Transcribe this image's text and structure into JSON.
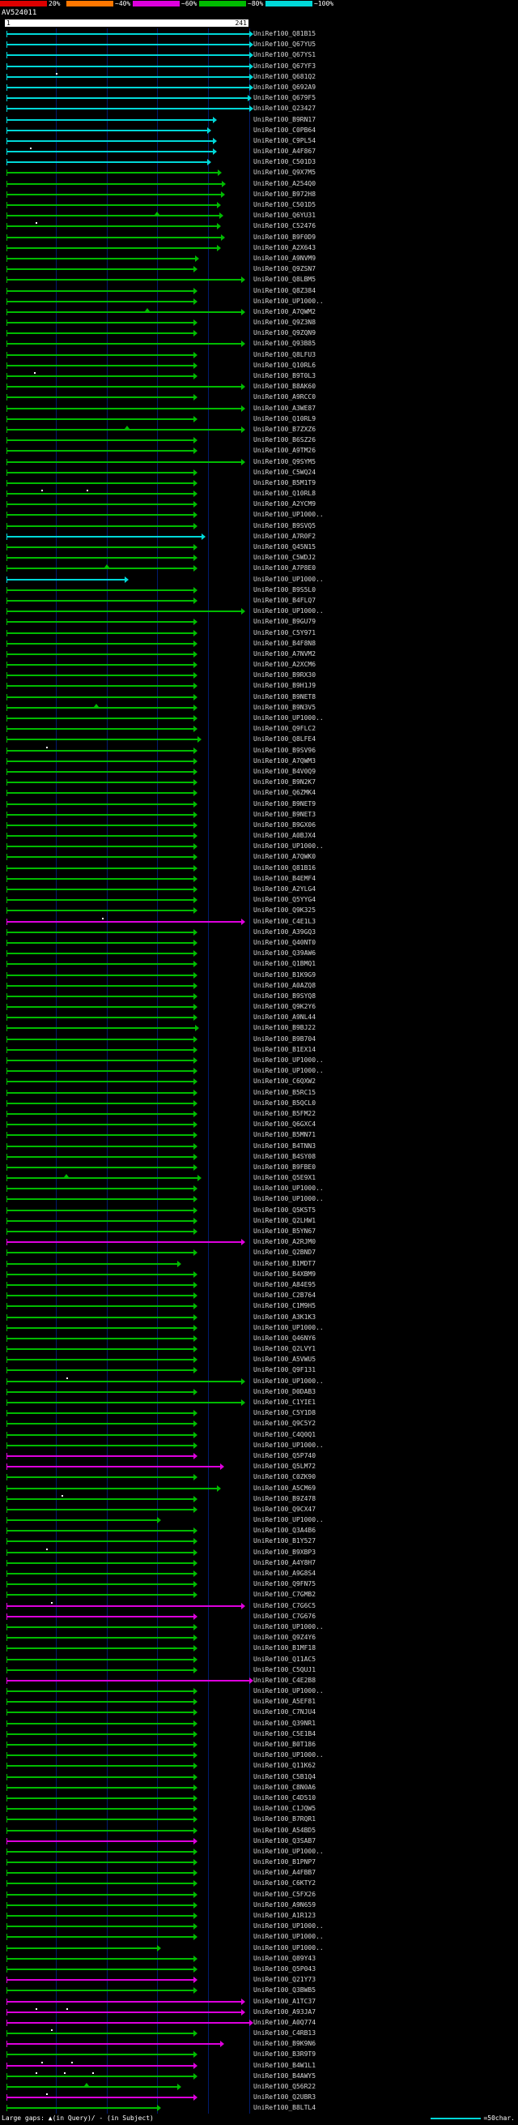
{
  "title": "AV524011",
  "scale": {
    "segments": [
      {
        "name": "red",
        "color": "#dd0000",
        "label": "20%"
      },
      {
        "name": "orange",
        "color": "#ff7700",
        "label": "~40%"
      },
      {
        "name": "magenta",
        "color": "#dd00dd",
        "label": "~60%"
      },
      {
        "name": "green",
        "color": "#00bb00",
        "label": "~80%"
      },
      {
        "name": "cyan",
        "color": "#00d8d8",
        "label": "~100%"
      }
    ]
  },
  "ruler": {
    "start": "1",
    "end": "241"
  },
  "footer": {
    "gaps_label": "Large gaps: ▲(in Query)/ - (in Subject)",
    "scale_mark_label": "=50char."
  },
  "chart_data": {
    "type": "alignment-overview",
    "query": "AV524011",
    "axis": {
      "min": 1,
      "max": 241,
      "gridlines": [
        50,
        100,
        150,
        200,
        241
      ]
    },
    "palette": {
      "cy": "#00d8d8",
      "gr": "#00bb00",
      "mg": "#dd00dd"
    },
    "rows": [
      {
        "l": "UniRef100_Q81B15",
        "e": 241,
        "c": "cy"
      },
      {
        "l": "UniRef100_Q67YU5",
        "e": 241,
        "c": "cy"
      },
      {
        "l": "UniRef100_Q67YS1",
        "e": 241,
        "c": "cy"
      },
      {
        "l": "UniRef100_Q67YF3",
        "e": 241,
        "c": "cy"
      },
      {
        "l": "UniRef100_Q681Q2",
        "e": 241,
        "c": "cy",
        "dot": [
          50
        ]
      },
      {
        "l": "UniRef100_Q692A9",
        "e": 241,
        "c": "cy"
      },
      {
        "l": "UniRef100_Q679F5",
        "e": 239,
        "c": "cy"
      },
      {
        "l": "UniRef100_Q23427",
        "e": 241,
        "c": "cy"
      },
      {
        "l": "UniRef100_B9RN17",
        "e": 205,
        "c": "cy"
      },
      {
        "l": "UniRef100_C0PB64",
        "e": 199,
        "c": "cy"
      },
      {
        "l": "UniRef100_C9PL54",
        "e": 205,
        "c": "cy"
      },
      {
        "l": "UniRef100_A4F867",
        "e": 205,
        "c": "cy",
        "dot": [
          24
        ]
      },
      {
        "l": "UniRef100_C501D3",
        "e": 199,
        "c": "cy"
      },
      {
        "l": "UniRef100_Q9X7M5",
        "e": 210,
        "c": "gr"
      },
      {
        "l": "UniRef100_A254Q0",
        "e": 214,
        "c": "gr"
      },
      {
        "l": "UniRef100_B972H8",
        "e": 213,
        "c": "gr"
      },
      {
        "l": "UniRef100_C501D5",
        "e": 209,
        "c": "gr"
      },
      {
        "l": "UniRef100_Q6YU31",
        "e": 211,
        "c": "gr",
        "tri": [
          150
        ]
      },
      {
        "l": "UniRef100_C52476",
        "e": 209,
        "c": "gr",
        "dot": [
          30
        ]
      },
      {
        "l": "UniRef100_B9F0D9",
        "e": 213,
        "c": "gr"
      },
      {
        "l": "UniRef100_A2X643",
        "e": 209,
        "c": "gr"
      },
      {
        "l": "UniRef100_A9NVM9",
        "e": 187,
        "c": "gr"
      },
      {
        "l": "UniRef100_Q9ZSN7",
        "e": 186,
        "c": "gr"
      },
      {
        "l": "UniRef100_Q8LBM5",
        "e": 233,
        "c": "gr"
      },
      {
        "l": "UniRef100_Q8Z384",
        "e": 186,
        "c": "gr"
      },
      {
        "l": "UniRef100_UP1000..",
        "e": 186,
        "c": "gr"
      },
      {
        "l": "UniRef100_A7QWM2",
        "e": 233,
        "c": "gr",
        "tri": [
          140
        ]
      },
      {
        "l": "UniRef100_Q9Z3N8",
        "e": 186,
        "c": "gr"
      },
      {
        "l": "UniRef100_Q9ZQN9",
        "e": 186,
        "c": "gr"
      },
      {
        "l": "UniRef100_Q93B85",
        "e": 233,
        "c": "gr"
      },
      {
        "l": "UniRef100_Q8LFU3",
        "e": 186,
        "c": "gr"
      },
      {
        "l": "UniRef100_Q10RL6",
        "e": 186,
        "c": "gr"
      },
      {
        "l": "UniRef100_B9T0L3",
        "e": 186,
        "c": "gr",
        "dot": [
          28
        ]
      },
      {
        "l": "UniRef100_B8AK60",
        "e": 233,
        "c": "gr"
      },
      {
        "l": "UniRef100_A9RCC0",
        "e": 186,
        "c": "gr"
      },
      {
        "l": "UniRef100_A3WE87",
        "e": 233,
        "c": "gr"
      },
      {
        "l": "UniRef100_Q10RL9",
        "e": 186,
        "c": "gr"
      },
      {
        "l": "UniRef100_B7ZXZ6",
        "e": 233,
        "c": "gr",
        "tri": [
          120
        ]
      },
      {
        "l": "UniRef100_B6SZ26",
        "e": 186,
        "c": "gr"
      },
      {
        "l": "UniRef100_A9TM26",
        "e": 186,
        "c": "gr"
      },
      {
        "l": "UniRef100_Q9SYM5",
        "e": 233,
        "c": "gr"
      },
      {
        "l": "UniRef100_C5WQ24",
        "e": 186,
        "c": "gr"
      },
      {
        "l": "UniRef100_B5M1T9",
        "e": 186,
        "c": "gr"
      },
      {
        "l": "UniRef100_Q10RL8",
        "e": 186,
        "c": "gr",
        "dot": [
          35,
          80
        ]
      },
      {
        "l": "UniRef100_A2YCM9",
        "e": 186,
        "c": "gr"
      },
      {
        "l": "UniRef100_UP1000..",
        "e": 186,
        "c": "gr"
      },
      {
        "l": "UniRef100_B9SVQ5",
        "e": 186,
        "c": "gr"
      },
      {
        "l": "UniRef100_A7R0F2",
        "e": 194,
        "c": "cy"
      },
      {
        "l": "UniRef100_Q45N15",
        "e": 186,
        "c": "gr"
      },
      {
        "l": "UniRef100_C5WDJ2",
        "e": 186,
        "c": "gr"
      },
      {
        "l": "UniRef100_A7P8E0",
        "e": 186,
        "c": "gr",
        "tri": [
          100
        ]
      },
      {
        "l": "UniRef100_UP1000..",
        "e": 118,
        "c": "cy"
      },
      {
        "l": "UniRef100_B9S5L0",
        "e": 186,
        "c": "gr"
      },
      {
        "l": "UniRef100_B4FLQ7",
        "e": 186,
        "c": "gr"
      },
      {
        "l": "UniRef100_UP1000..",
        "e": 233,
        "c": "gr"
      },
      {
        "l": "UniRef100_B9GU79",
        "e": 186,
        "c": "gr"
      },
      {
        "l": "UniRef100_C5Y971",
        "e": 186,
        "c": "gr"
      },
      {
        "l": "UniRef100_B4F8N8",
        "e": 186,
        "c": "gr"
      },
      {
        "l": "UniRef100_A7NVM2",
        "e": 186,
        "c": "gr"
      },
      {
        "l": "UniRef100_A2XCM6",
        "e": 186,
        "c": "gr"
      },
      {
        "l": "UniRef100_B9RX30",
        "e": 186,
        "c": "gr"
      },
      {
        "l": "UniRef100_B9H1J9",
        "e": 186,
        "c": "gr"
      },
      {
        "l": "UniRef100_B9NET8",
        "e": 186,
        "c": "gr"
      },
      {
        "l": "UniRef100_B9N3V5",
        "e": 186,
        "c": "gr",
        "tri": [
          90
        ]
      },
      {
        "l": "UniRef100_UP1000..",
        "e": 186,
        "c": "gr"
      },
      {
        "l": "UniRef100_Q9FLC2",
        "e": 186,
        "c": "gr"
      },
      {
        "l": "UniRef100_Q8LFE4",
        "e": 190,
        "c": "gr"
      },
      {
        "l": "UniRef100_B9SV96",
        "e": 186,
        "c": "gr",
        "dot": [
          40
        ]
      },
      {
        "l": "UniRef100_A7QWM3",
        "e": 186,
        "c": "gr"
      },
      {
        "l": "UniRef100_B4V0Q9",
        "e": 186,
        "c": "gr"
      },
      {
        "l": "UniRef100_B9N2K7",
        "e": 186,
        "c": "gr"
      },
      {
        "l": "UniRef100_Q6ZMK4",
        "e": 186,
        "c": "gr"
      },
      {
        "l": "UniRef100_B9NET9",
        "e": 186,
        "c": "gr"
      },
      {
        "l": "UniRef100_B9NET3",
        "e": 186,
        "c": "gr"
      },
      {
        "l": "UniRef100_B9GX06",
        "e": 186,
        "c": "gr"
      },
      {
        "l": "UniRef100_A0BJX4",
        "e": 186,
        "c": "gr"
      },
      {
        "l": "UniRef100_UP1000..",
        "e": 186,
        "c": "gr"
      },
      {
        "l": "UniRef100_A7QWK0",
        "e": 186,
        "c": "gr"
      },
      {
        "l": "UniRef100_Q81B16",
        "e": 186,
        "c": "gr"
      },
      {
        "l": "UniRef100_B4EMF4",
        "e": 186,
        "c": "gr"
      },
      {
        "l": "UniRef100_A2YLG4",
        "e": 186,
        "c": "gr"
      },
      {
        "l": "UniRef100_Q5YYG4",
        "e": 186,
        "c": "gr"
      },
      {
        "l": "UniRef100_Q9K325",
        "e": 186,
        "c": "gr"
      },
      {
        "l": "UniRef100_C4E1L3",
        "e": 233,
        "c": "mg",
        "dot": [
          95
        ]
      },
      {
        "l": "UniRef100_A39GQ3",
        "e": 186,
        "c": "gr"
      },
      {
        "l": "UniRef100_Q40NT0",
        "e": 186,
        "c": "gr"
      },
      {
        "l": "UniRef100_Q39AW6",
        "e": 186,
        "c": "gr"
      },
      {
        "l": "UniRef100_Q1BMQ1",
        "e": 186,
        "c": "gr"
      },
      {
        "l": "UniRef100_B1K9G9",
        "e": 186,
        "c": "gr"
      },
      {
        "l": "UniRef100_A0AZQ8",
        "e": 186,
        "c": "gr"
      },
      {
        "l": "UniRef100_B9SYQ8",
        "e": 186,
        "c": "gr"
      },
      {
        "l": "UniRef100_Q9K2Y6",
        "e": 186,
        "c": "gr"
      },
      {
        "l": "UniRef100_A9NL44",
        "e": 186,
        "c": "gr"
      },
      {
        "l": "UniRef100_B9BJ22",
        "e": 187,
        "c": "gr"
      },
      {
        "l": "UniRef100_B9B704",
        "e": 186,
        "c": "gr"
      },
      {
        "l": "UniRef100_B1EX14",
        "e": 186,
        "c": "gr"
      },
      {
        "l": "UniRef100_UP1000..",
        "e": 186,
        "c": "gr"
      },
      {
        "l": "UniRef100_UP1000..",
        "e": 186,
        "c": "gr"
      },
      {
        "l": "UniRef100_C6QXW2",
        "e": 186,
        "c": "gr"
      },
      {
        "l": "UniRef100_B5RC15",
        "e": 186,
        "c": "gr"
      },
      {
        "l": "UniRef100_B5QCL0",
        "e": 186,
        "c": "gr"
      },
      {
        "l": "UniRef100_B5FM22",
        "e": 186,
        "c": "gr"
      },
      {
        "l": "UniRef100_Q6GXC4",
        "e": 186,
        "c": "gr"
      },
      {
        "l": "UniRef100_B5MN71",
        "e": 186,
        "c": "gr"
      },
      {
        "l": "UniRef100_B4TNN3",
        "e": 186,
        "c": "gr"
      },
      {
        "l": "UniRef100_B4SY08",
        "e": 186,
        "c": "gr"
      },
      {
        "l": "UniRef100_B9FBE0",
        "e": 186,
        "c": "gr"
      },
      {
        "l": "UniRef100_Q5E9X1",
        "e": 190,
        "c": "gr",
        "tri": [
          60
        ]
      },
      {
        "l": "UniRef100_UP1000..",
        "e": 186,
        "c": "gr"
      },
      {
        "l": "UniRef100_UP1000..",
        "e": 186,
        "c": "gr"
      },
      {
        "l": "UniRef100_Q5K5T5",
        "e": 186,
        "c": "gr"
      },
      {
        "l": "UniRef100_Q2LHW1",
        "e": 186,
        "c": "gr"
      },
      {
        "l": "UniRef100_B5YN67",
        "e": 186,
        "c": "gr"
      },
      {
        "l": "UniRef100_A2RJM0",
        "e": 233,
        "c": "mg"
      },
      {
        "l": "UniRef100_Q2BND7",
        "e": 186,
        "c": "gr"
      },
      {
        "l": "UniRef100_B1MDT7",
        "e": 170,
        "c": "gr"
      },
      {
        "l": "UniRef100_B4XBM9",
        "e": 186,
        "c": "gr"
      },
      {
        "l": "UniRef100_A84E95",
        "e": 186,
        "c": "gr"
      },
      {
        "l": "UniRef100_C2B764",
        "e": 186,
        "c": "gr"
      },
      {
        "l": "UniRef100_C1M9H5",
        "e": 186,
        "c": "gr"
      },
      {
        "l": "UniRef100_A3K1K3",
        "e": 186,
        "c": "gr"
      },
      {
        "l": "UniRef100_UP1000..",
        "e": 186,
        "c": "gr"
      },
      {
        "l": "UniRef100_Q46NY6",
        "e": 186,
        "c": "gr"
      },
      {
        "l": "UniRef100_Q2LVY1",
        "e": 186,
        "c": "gr"
      },
      {
        "l": "UniRef100_A5VWU5",
        "e": 186,
        "c": "gr"
      },
      {
        "l": "UniRef100_Q9F131",
        "e": 186,
        "c": "gr"
      },
      {
        "l": "UniRef100_UP1000..",
        "e": 233,
        "c": "gr",
        "dot": [
          60
        ]
      },
      {
        "l": "UniRef100_D0DAB3",
        "e": 186,
        "c": "gr"
      },
      {
        "l": "UniRef100_C1YIE1",
        "e": 233,
        "c": "gr"
      },
      {
        "l": "UniRef100_C5Y1D8",
        "e": 186,
        "c": "gr"
      },
      {
        "l": "UniRef100_Q9C5Y2",
        "e": 186,
        "c": "gr"
      },
      {
        "l": "UniRef100_C4Q0Q1",
        "e": 186,
        "c": "gr"
      },
      {
        "l": "UniRef100_UP1000..",
        "e": 186,
        "c": "gr"
      },
      {
        "l": "UniRef100_Q5P740",
        "e": 186,
        "c": "mg"
      },
      {
        "l": "UniRef100_Q5LM72",
        "e": 212,
        "c": "mg"
      },
      {
        "l": "UniRef100_C0ZK90",
        "e": 186,
        "c": "gr"
      },
      {
        "l": "UniRef100_A5CM69",
        "e": 209,
        "c": "gr"
      },
      {
        "l": "UniRef100_B9Z478",
        "e": 186,
        "c": "gr",
        "dot": [
          55
        ]
      },
      {
        "l": "UniRef100_Q9CX47",
        "e": 186,
        "c": "gr"
      },
      {
        "l": "UniRef100_UP1000..",
        "e": 150,
        "c": "gr"
      },
      {
        "l": "UniRef100_Q3A4B6",
        "e": 186,
        "c": "gr"
      },
      {
        "l": "UniRef100_B1Y527",
        "e": 186,
        "c": "gr"
      },
      {
        "l": "UniRef100_B9XBP3",
        "e": 186,
        "c": "gr",
        "dot": [
          40
        ]
      },
      {
        "l": "UniRef100_A4Y8H7",
        "e": 186,
        "c": "gr"
      },
      {
        "l": "UniRef100_A9G8S4",
        "e": 186,
        "c": "gr"
      },
      {
        "l": "UniRef100_Q9FN75",
        "e": 186,
        "c": "gr"
      },
      {
        "l": "UniRef100_C7GMB2",
        "e": 186,
        "c": "gr"
      },
      {
        "l": "UniRef100_C7G6C5",
        "e": 233,
        "c": "mg",
        "dot": [
          45
        ]
      },
      {
        "l": "UniRef100_C7G676",
        "e": 186,
        "c": "mg"
      },
      {
        "l": "UniRef100_UP1000..",
        "e": 186,
        "c": "gr"
      },
      {
        "l": "UniRef100_Q9Z4Y6",
        "e": 186,
        "c": "gr"
      },
      {
        "l": "UniRef100_B1MF18",
        "e": 186,
        "c": "gr"
      },
      {
        "l": "UniRef100_Q11AC5",
        "e": 186,
        "c": "gr"
      },
      {
        "l": "UniRef100_C5QUJ1",
        "e": 186,
        "c": "gr"
      },
      {
        "l": "UniRef100_C4E2B8",
        "e": 241,
        "c": "mg"
      },
      {
        "l": "UniRef100_UP1000..",
        "e": 186,
        "c": "gr"
      },
      {
        "l": "UniRef100_A5EF81",
        "e": 186,
        "c": "gr"
      },
      {
        "l": "UniRef100_C7NJU4",
        "e": 186,
        "c": "gr"
      },
      {
        "l": "UniRef100_Q39NR1",
        "e": 186,
        "c": "gr"
      },
      {
        "l": "UniRef100_C5E1B4",
        "e": 186,
        "c": "gr"
      },
      {
        "l": "UniRef100_B0T186",
        "e": 186,
        "c": "gr"
      },
      {
        "l": "UniRef100_UP1000..",
        "e": 186,
        "c": "gr"
      },
      {
        "l": "UniRef100_Q11K62",
        "e": 186,
        "c": "gr"
      },
      {
        "l": "UniRef100_C5B1Q4",
        "e": 186,
        "c": "gr"
      },
      {
        "l": "UniRef100_C8N0A6",
        "e": 186,
        "c": "gr"
      },
      {
        "l": "UniRef100_C4D510",
        "e": 186,
        "c": "gr"
      },
      {
        "l": "UniRef100_C1JQW5",
        "e": 186,
        "c": "gr"
      },
      {
        "l": "UniRef100_B7RQR1",
        "e": 186,
        "c": "gr"
      },
      {
        "l": "UniRef100_A54BD5",
        "e": 186,
        "c": "gr"
      },
      {
        "l": "UniRef100_Q3SAB7",
        "e": 186,
        "c": "mg"
      },
      {
        "l": "UniRef100_UP1000..",
        "e": 186,
        "c": "gr"
      },
      {
        "l": "UniRef100_B1PNP7",
        "e": 186,
        "c": "gr"
      },
      {
        "l": "UniRef100_A4FBB7",
        "e": 186,
        "c": "gr"
      },
      {
        "l": "UniRef100_C6KTY2",
        "e": 186,
        "c": "gr"
      },
      {
        "l": "UniRef100_C5FX26",
        "e": 186,
        "c": "gr"
      },
      {
        "l": "UniRef100_A9N659",
        "e": 186,
        "c": "gr"
      },
      {
        "l": "UniRef100_A1R123",
        "e": 186,
        "c": "gr"
      },
      {
        "l": "UniRef100_UP1000..",
        "e": 186,
        "c": "gr"
      },
      {
        "l": "UniRef100_UP1000..",
        "e": 186,
        "c": "gr"
      },
      {
        "l": "UniRef100_UP1000..",
        "e": 150,
        "c": "gr"
      },
      {
        "l": "UniRef100_Q89Y43",
        "e": 186,
        "c": "gr"
      },
      {
        "l": "UniRef100_Q5P043",
        "e": 186,
        "c": "gr"
      },
      {
        "l": "UniRef100_Q21Y73",
        "e": 186,
        "c": "mg"
      },
      {
        "l": "UniRef100_Q3BWB5",
        "e": 186,
        "c": "gr"
      },
      {
        "l": "UniRef100_A1TC37",
        "e": 233,
        "c": "mg"
      },
      {
        "l": "UniRef100_A93JA7",
        "e": 233,
        "c": "mg",
        "dot": [
          30,
          60
        ]
      },
      {
        "l": "UniRef100_A0Q774",
        "e": 241,
        "c": "mg"
      },
      {
        "l": "UniRef100_C4RB13",
        "e": 186,
        "c": "gr",
        "dot": [
          45
        ]
      },
      {
        "l": "UniRef100_B9K9N6",
        "e": 212,
        "c": "mg"
      },
      {
        "l": "UniRef100_B3R9T9",
        "e": 186,
        "c": "gr"
      },
      {
        "l": "UniRef100_B4W1L1",
        "e": 186,
        "c": "mg",
        "dot": [
          35,
          65
        ]
      },
      {
        "l": "UniRef100_B4AWY5",
        "e": 186,
        "c": "gr",
        "dot": [
          30,
          58,
          86
        ]
      },
      {
        "l": "UniRef100_Q56R22",
        "e": 170,
        "c": "gr",
        "tri": [
          80
        ]
      },
      {
        "l": "UniRef100_Q2UBR3",
        "e": 186,
        "c": "mg",
        "dot": [
          40
        ]
      },
      {
        "l": "UniRef100_B8LTL4",
        "e": 150,
        "c": "gr"
      }
    ]
  }
}
